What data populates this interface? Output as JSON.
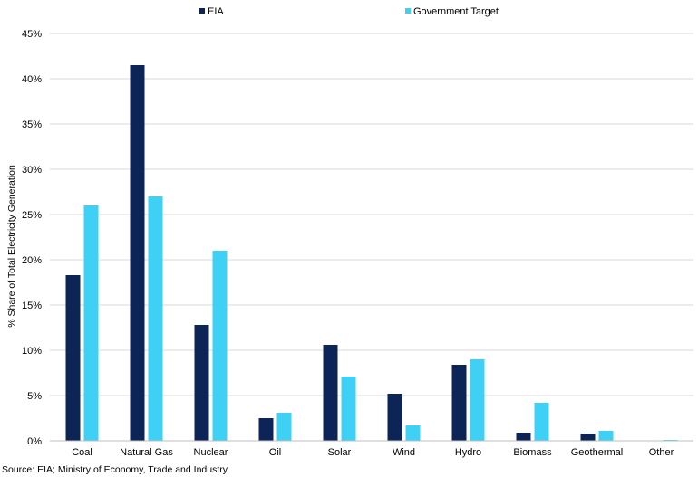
{
  "chart_data": {
    "type": "bar",
    "categories": [
      "Coal",
      "Natural Gas",
      "Nuclear",
      "Oil",
      "Solar",
      "Wind",
      "Hydro",
      "Biomass",
      "Geothermal",
      "Other"
    ],
    "series": [
      {
        "name": "EIA",
        "color": "#0d2456",
        "values": [
          18.3,
          41.5,
          12.8,
          2.5,
          10.6,
          5.2,
          8.4,
          0.9,
          0.8,
          0.0
        ]
      },
      {
        "name": "Government Target",
        "color": "#3fd1f5",
        "values": [
          26.0,
          27.0,
          21.0,
          3.1,
          7.1,
          1.7,
          9.0,
          4.2,
          1.1,
          0.1
        ]
      }
    ],
    "ylabel": "% Share of Total Electricity Generation",
    "ylim": [
      0,
      45
    ],
    "yticks": [
      0,
      5,
      10,
      15,
      20,
      25,
      30,
      35,
      40,
      45
    ],
    "ytick_labels": [
      "0%",
      "5%",
      "10%",
      "15%",
      "20%",
      "25%",
      "30%",
      "35%",
      "40%",
      "45%"
    ],
    "grid": true,
    "legend_position": "top"
  },
  "source_note": "Source: EIA; Ministry of Economy, Trade and Industry"
}
